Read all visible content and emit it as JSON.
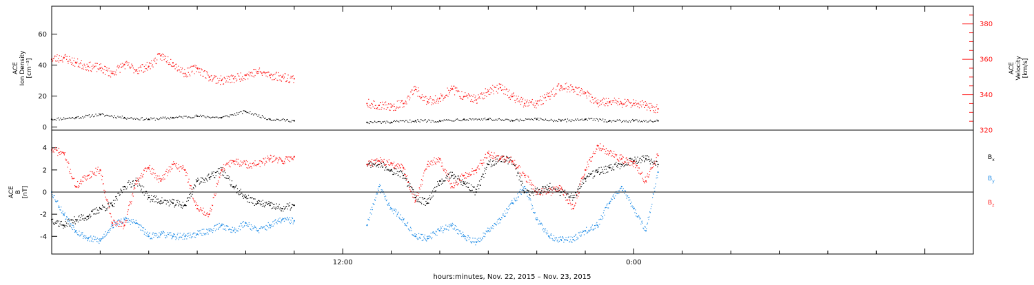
{
  "colors": {
    "red": "#ff1a1a",
    "blue": "#1f8ce6",
    "black": "#000000"
  },
  "xaxis": {
    "label": "hours:minutes, Nov. 22, 2015 – Nov. 23, 2015",
    "range_hours": [
      0,
      38
    ],
    "major_ticks": [
      {
        "hour": 12,
        "label": "12:00"
      },
      {
        "hour": 24,
        "label": "0:00"
      }
    ],
    "minor_tick_step_hours": 2
  },
  "chart_data": [
    {
      "type": "scatter",
      "panel": "ion-density-velocity",
      "ylabel": [
        "ACE",
        "Ion Density",
        "[cm⁻³]"
      ],
      "ylim": [
        -2,
        78
      ],
      "yticks": [
        0,
        20,
        40,
        60
      ],
      "y2label": [
        "ACE",
        "Velocity",
        "[km/s]"
      ],
      "y2lim": [
        320,
        390
      ],
      "y2ticks": [
        320,
        340,
        360,
        380
      ],
      "series": [
        {
          "axis": "left",
          "color": "black",
          "segments": [
            {
              "x": [
                0.0,
                1.0,
                2.0,
                3.0,
                4.0,
                5.0,
                6.0,
                7.0,
                8.0,
                9.0,
                10.0
              ],
              "y": [
                5,
                6,
                8,
                6,
                5,
                6,
                7,
                6,
                10,
                5,
                4
              ]
            },
            {
              "x": [
                13.0,
                14.0,
                15.0,
                16.0,
                17.0,
                18.0,
                19.0,
                20.0,
                21.0,
                22.0,
                23.0,
                24.0,
                25.0
              ],
              "y": [
                3,
                3,
                4,
                4,
                5,
                5,
                4,
                5,
                4,
                5,
                4,
                4,
                4
              ]
            }
          ]
        },
        {
          "axis": "right",
          "color": "red",
          "segments": [
            {
              "x": [
                0.0,
                0.5,
                1.0,
                1.5,
                2.0,
                2.5,
                3.0,
                3.5,
                4.0,
                4.5,
                5.0,
                5.5,
                6.0,
                6.5,
                7.0,
                7.5,
                8.0,
                8.5,
                9.0,
                9.5,
                10.0
              ],
              "y": [
                360,
                361,
                358,
                356,
                355,
                352,
                357,
                354,
                356,
                362,
                358,
                352,
                355,
                350,
                348,
                349,
                351,
                353,
                351,
                350,
                349
              ]
            },
            {
              "x": [
                13.0,
                13.5,
                14.0,
                14.5,
                15.0,
                15.5,
                16.0,
                16.5,
                17.0,
                17.5,
                18.0,
                18.5,
                19.0,
                19.5,
                20.0,
                20.5,
                21.0,
                21.5,
                22.0,
                22.5,
                23.0,
                23.5,
                24.0,
                24.5,
                25.0
              ],
              "y": [
                335,
                334,
                333,
                335,
                343,
                336,
                338,
                343,
                339,
                337,
                342,
                344,
                339,
                335,
                335,
                339,
                345,
                343,
                341,
                335,
                336,
                335,
                335,
                334,
                332
              ]
            }
          ]
        }
      ]
    },
    {
      "type": "scatter",
      "panel": "magnetic-field",
      "ylabel": [
        "ACE",
        "B",
        "[nT]"
      ],
      "ylim": [
        -5.6,
        5.6
      ],
      "yticks": [
        -4,
        -2,
        0,
        2,
        4
      ],
      "zero_line": true,
      "legend": [
        {
          "label": "B",
          "sub": "x",
          "color": "black"
        },
        {
          "label": "B",
          "sub": "y",
          "color": "blue"
        },
        {
          "label": "B",
          "sub": "z",
          "color": "red"
        }
      ],
      "series": [
        {
          "color": "black",
          "segments": [
            {
              "x": [
                0.0,
                0.5,
                1.0,
                1.5,
                2.0,
                2.5,
                3.0,
                3.5,
                4.0,
                4.5,
                5.0,
                5.5,
                6.0,
                6.5,
                7.0,
                7.5,
                8.0,
                8.5,
                9.0,
                9.5,
                10.0
              ],
              "y": [
                -2.5,
                -3.0,
                -2.5,
                -2.2,
                -1.5,
                -1.2,
                0.5,
                1.0,
                -0.5,
                -0.8,
                -1.0,
                -1.2,
                1.0,
                1.3,
                2.0,
                0.5,
                -0.5,
                -1.0,
                -1.2,
                -1.5,
                -1.2
              ]
            },
            {
              "x": [
                13.0,
                13.5,
                14.0,
                14.5,
                15.0,
                15.5,
                16.0,
                16.5,
                17.0,
                17.5,
                18.0,
                18.5,
                19.0,
                19.5,
                20.0,
                20.5,
                21.0,
                21.5,
                22.0,
                22.5,
                23.0,
                23.5,
                24.0,
                24.5,
                25.0
              ],
              "y": [
                2.5,
                2.5,
                2.0,
                1.5,
                -0.5,
                -1.0,
                1.0,
                1.5,
                0.8,
                0.0,
                2.5,
                3.0,
                2.8,
                0.0,
                0.0,
                0.5,
                0.0,
                -0.5,
                1.2,
                1.8,
                2.2,
                2.5,
                2.8,
                3.0,
                2.5
              ]
            }
          ]
        },
        {
          "color": "blue",
          "segments": [
            {
              "x": [
                0.0,
                0.5,
                1.0,
                1.5,
                2.0,
                2.5,
                3.0,
                3.5,
                4.0,
                4.5,
                5.0,
                5.5,
                6.0,
                6.5,
                7.0,
                7.5,
                8.0,
                8.5,
                9.0,
                9.5,
                10.0
              ],
              "y": [
                0.0,
                -2.0,
                -3.5,
                -4.2,
                -4.4,
                -3.0,
                -2.5,
                -2.8,
                -4.0,
                -3.8,
                -4.0,
                -4.0,
                -3.8,
                -3.5,
                -3.0,
                -3.5,
                -2.8,
                -3.5,
                -3.0,
                -2.5,
                -2.6
              ]
            },
            {
              "x": [
                13.0,
                13.5,
                14.0,
                14.5,
                15.0,
                15.5,
                16.0,
                16.5,
                17.0,
                17.5,
                18.0,
                18.5,
                19.0,
                19.5,
                20.0,
                20.5,
                21.0,
                21.5,
                22.0,
                22.5,
                23.0,
                23.5,
                24.0,
                24.5,
                25.0
              ],
              "y": [
                -3.0,
                0.5,
                -1.5,
                -2.5,
                -4.0,
                -4.2,
                -3.5,
                -3.0,
                -4.0,
                -4.5,
                -3.5,
                -2.5,
                -1.0,
                0.5,
                -2.5,
                -4.0,
                -4.3,
                -4.3,
                -3.5,
                -3.0,
                -1.0,
                0.5,
                -1.5,
                -3.5,
                1.8
              ]
            }
          ]
        },
        {
          "color": "red",
          "segments": [
            {
              "x": [
                0.0,
                0.5,
                1.0,
                1.5,
                2.0,
                2.5,
                3.0,
                3.5,
                4.0,
                4.5,
                5.0,
                5.5,
                6.0,
                6.5,
                7.0,
                7.5,
                8.0,
                8.5,
                9.0,
                9.5,
                10.0
              ],
              "y": [
                3.8,
                3.5,
                0.5,
                1.5,
                2.0,
                -2.8,
                -3.0,
                1.0,
                2.2,
                1.0,
                2.5,
                2.0,
                -1.5,
                -2.0,
                2.0,
                2.8,
                2.5,
                2.5,
                3.0,
                2.8,
                3.2
              ]
            },
            {
              "x": [
                13.0,
                13.5,
                14.0,
                14.5,
                15.0,
                15.5,
                16.0,
                16.5,
                17.0,
                17.5,
                18.0,
                18.5,
                19.0,
                19.5,
                20.0,
                20.5,
                21.0,
                21.5,
                22.0,
                22.5,
                23.0,
                23.5,
                24.0,
                24.5,
                25.0
              ],
              "y": [
                2.5,
                2.8,
                2.6,
                2.2,
                -0.8,
                2.5,
                3.0,
                0.5,
                1.5,
                2.0,
                3.5,
                3.0,
                2.8,
                1.5,
                0.0,
                0.0,
                0.3,
                -1.5,
                2.0,
                4.2,
                3.5,
                3.0,
                2.6,
                1.0,
                3.3
              ]
            }
          ]
        }
      ]
    }
  ]
}
